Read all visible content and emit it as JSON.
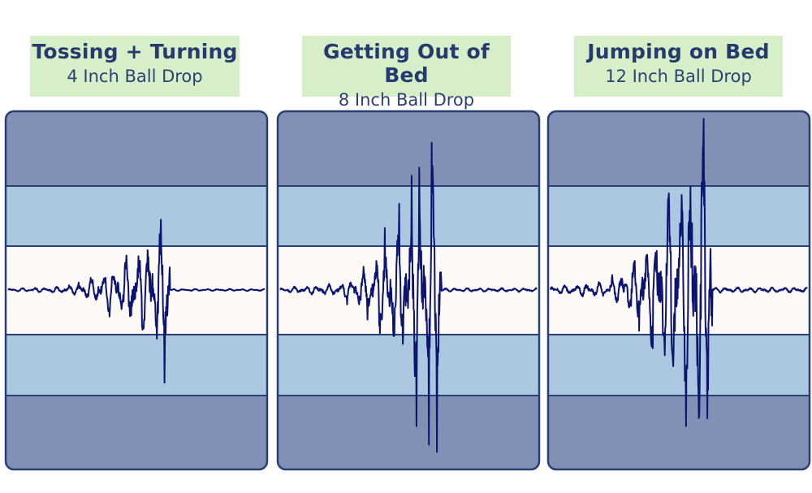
{
  "panels": [
    {
      "title": "Tossing + Turning",
      "subtitle": "4 Inch Ball Drop"
    },
    {
      "title": "Getting Out of Bed",
      "subtitle": "8 Inch Ball Drop"
    },
    {
      "title": "Jumping on Bed",
      "subtitle": "12 Inch Ball Drop"
    }
  ],
  "colors": {
    "outer_band": "#8290b5",
    "middle_band": "#abc8e0",
    "center_band": "#fcf9f6",
    "border": "#2a3f73",
    "waveform": "#0b1470",
    "label_bg": "#d6efc9",
    "label_text": "#273a6e"
  },
  "chart_data": [
    {
      "type": "line",
      "series": [
        {
          "amplitude_scale": 0.23
        }
      ]
    },
    {
      "type": "line",
      "series": [
        {
          "amplitude_scale": 0.41
        }
      ]
    },
    {
      "type": "line",
      "series": [
        {
          "amplitude_scale": 0.6
        }
      ]
    }
  ]
}
